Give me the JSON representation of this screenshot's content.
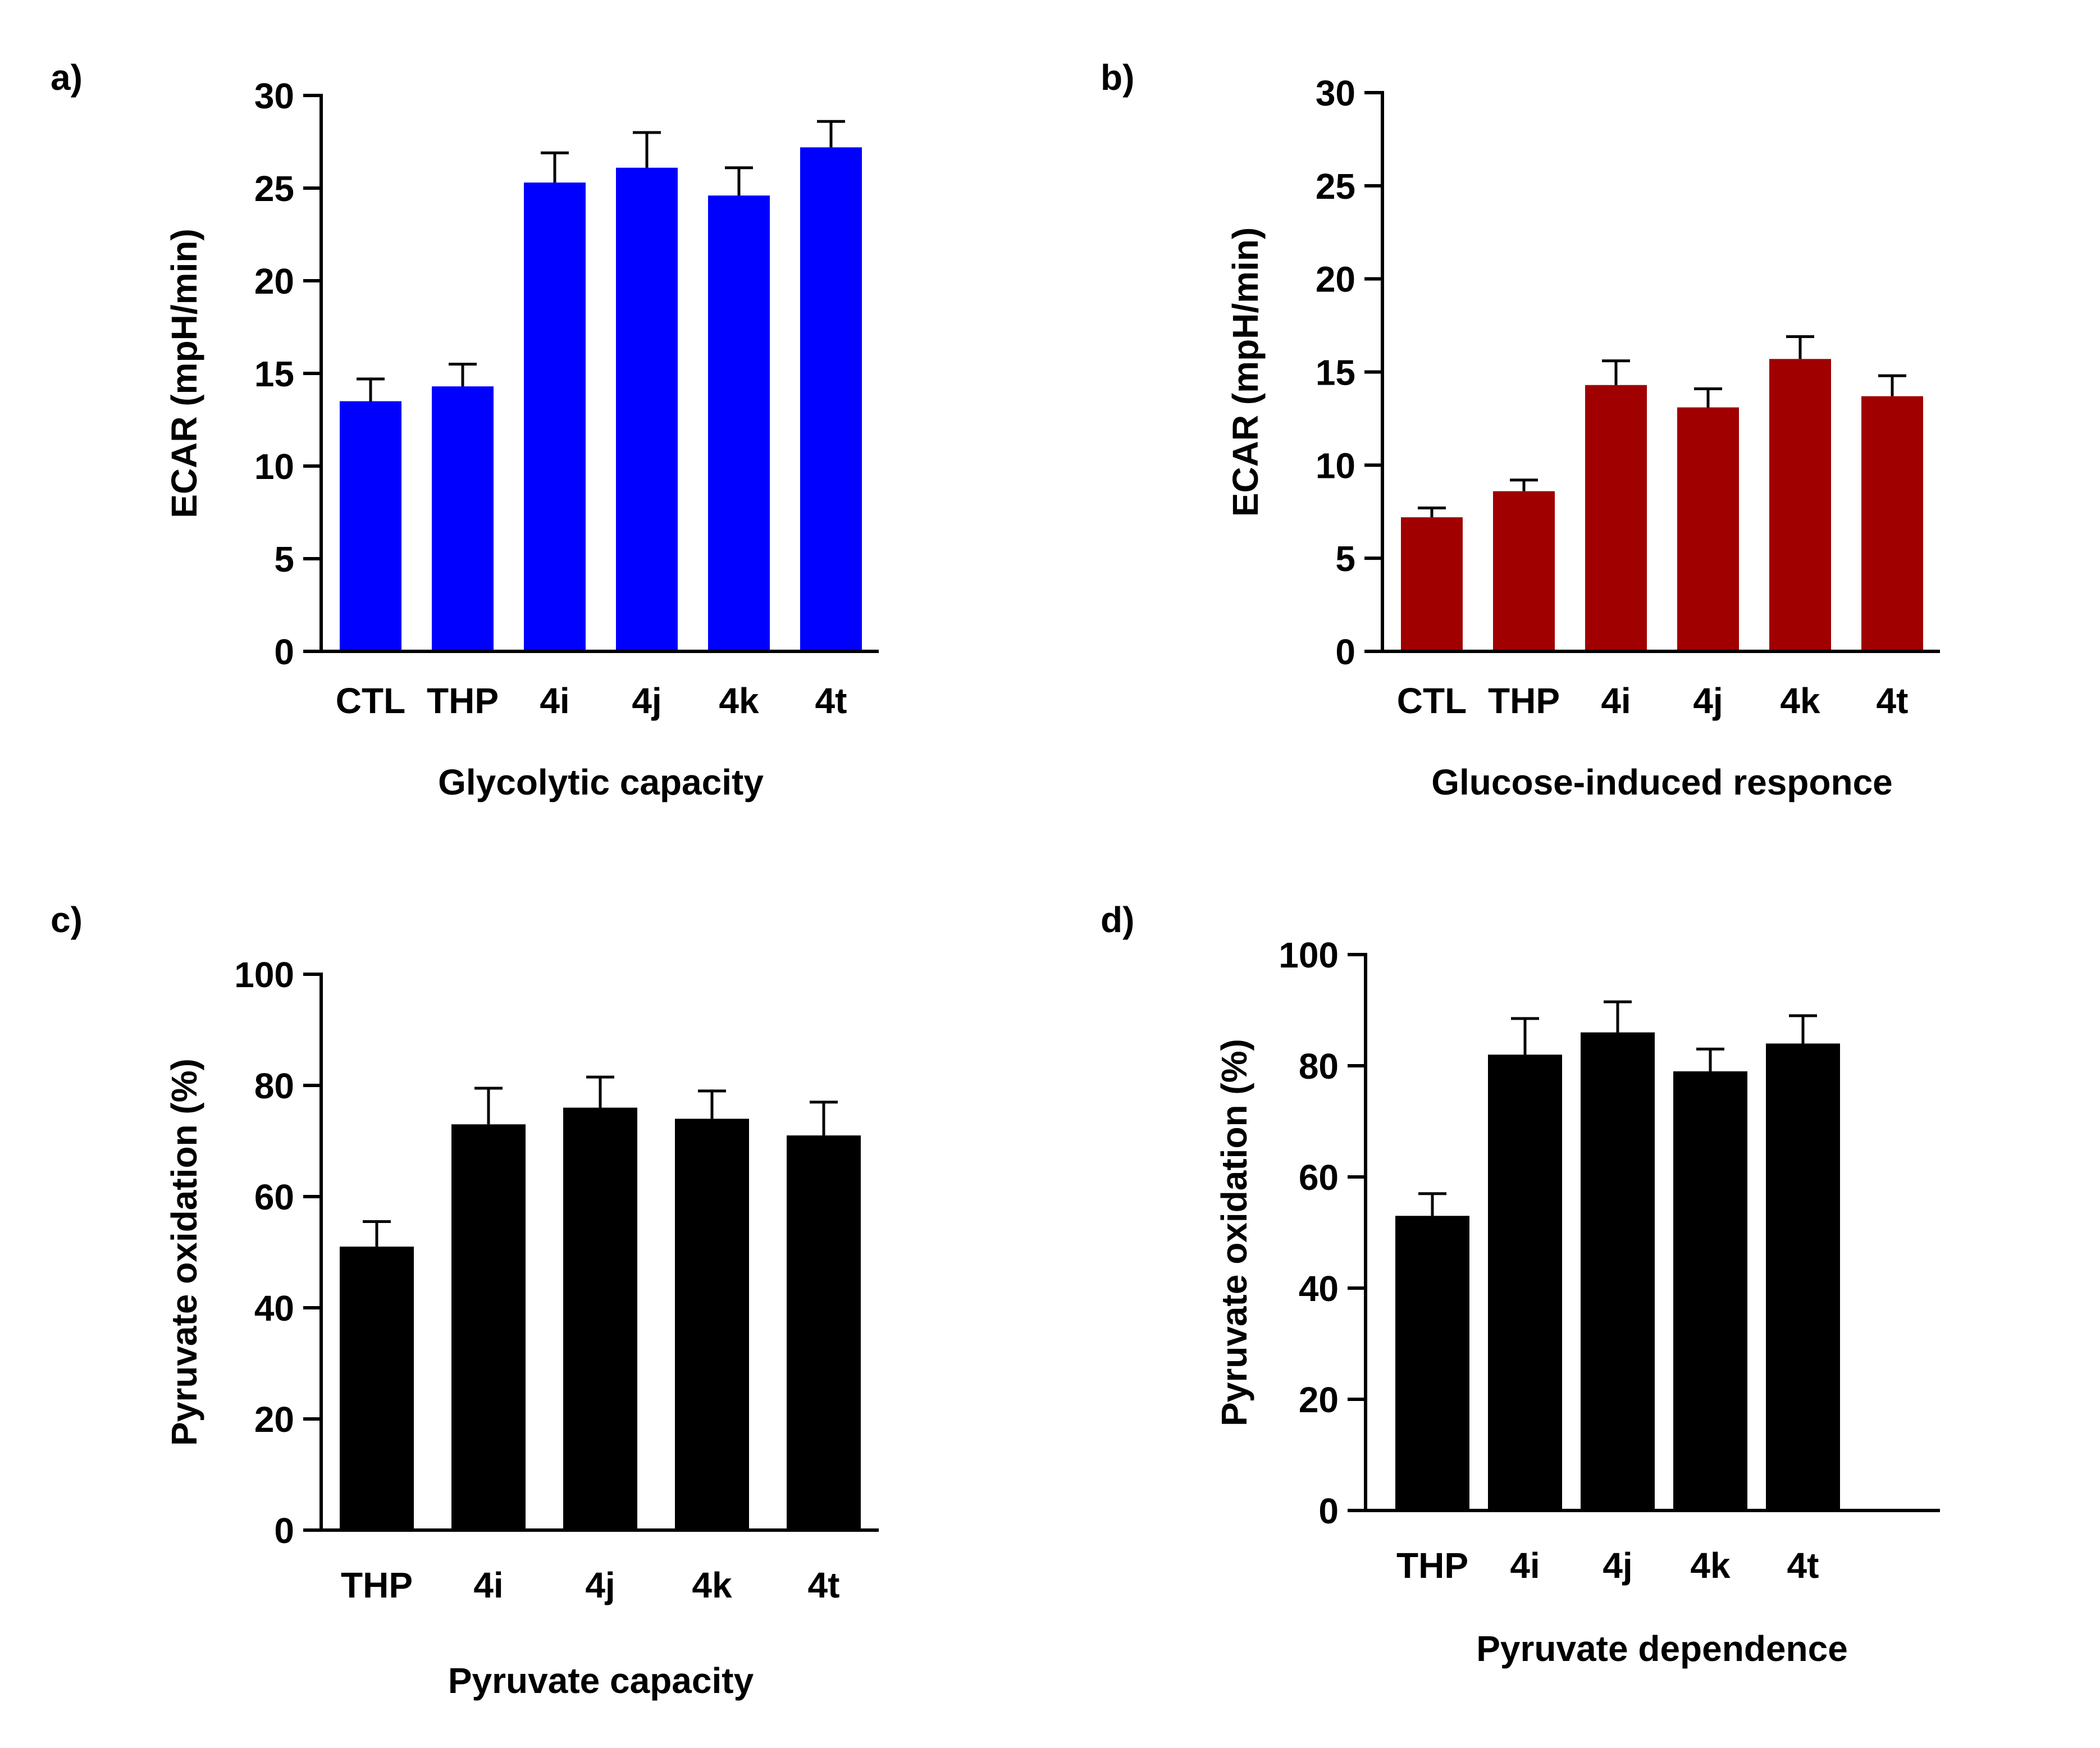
{
  "chart_data": [
    {
      "panel": "a)",
      "type": "bar",
      "title": "Glycolytic capacity",
      "xlabel": "",
      "ylabel": "ECAR (mpH/min)",
      "ylim": [
        0,
        30
      ],
      "yticks": [
        0,
        5,
        10,
        15,
        20,
        25,
        30
      ],
      "grid": false,
      "bar_color": "#0000ff",
      "categories": [
        "CTL",
        "THP",
        "4i",
        "4j",
        "4k",
        "4t"
      ],
      "values": [
        13.5,
        14.3,
        25.3,
        26.1,
        24.6,
        27.2
      ],
      "errors": [
        1.2,
        1.2,
        1.6,
        1.9,
        1.5,
        1.4
      ]
    },
    {
      "panel": "b)",
      "type": "bar",
      "title": "Glucose-induced responce",
      "xlabel": "",
      "ylabel": "ECAR (mpH/min)",
      "ylim": [
        0,
        30
      ],
      "yticks": [
        0,
        5,
        10,
        15,
        20,
        25,
        30
      ],
      "grid": false,
      "bar_color": "#a00000",
      "categories": [
        "CTL",
        "THP",
        "4i",
        "4j",
        "4k",
        "4t"
      ],
      "values": [
        7.2,
        8.6,
        14.3,
        13.1,
        15.7,
        13.7
      ],
      "errors": [
        0.5,
        0.6,
        1.3,
        1.0,
        1.2,
        1.1
      ]
    },
    {
      "panel": "c)",
      "type": "bar",
      "title": "Pyruvate capacity",
      "xlabel": "",
      "ylabel": "Pyruvate oxidation (%)",
      "ylim": [
        0,
        100
      ],
      "yticks": [
        0,
        20,
        40,
        60,
        80,
        100
      ],
      "grid": false,
      "bar_color": "#000000",
      "categories": [
        "THP",
        "4i",
        "4j",
        "4k",
        "4t"
      ],
      "values": [
        51,
        73,
        76,
        74,
        71
      ],
      "errors": [
        4.5,
        6.5,
        5.5,
        5,
        6
      ]
    },
    {
      "panel": "d)",
      "type": "bar",
      "title": "Pyruvate dependence",
      "xlabel": "",
      "ylabel": "Pyruvate oxidation (%)",
      "ylim": [
        0,
        100
      ],
      "yticks": [
        0,
        20,
        40,
        60,
        80,
        100
      ],
      "grid": false,
      "bar_color": "#000000",
      "categories": [
        "THP",
        "4i",
        "4j",
        "4k",
        "4t"
      ],
      "values": [
        53,
        82,
        86,
        79,
        84
      ],
      "errors": [
        4,
        6.5,
        5.5,
        4,
        5
      ]
    }
  ]
}
